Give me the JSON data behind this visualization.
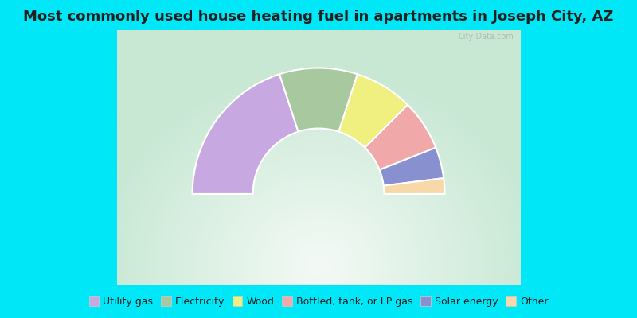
{
  "title": "Most commonly used house heating fuel in apartments in Joseph City, AZ",
  "segments": [
    {
      "label": "Utility gas",
      "value": 40,
      "color": "#c8a8e0"
    },
    {
      "label": "Electricity",
      "value": 20,
      "color": "#a8c8a0"
    },
    {
      "label": "Wood",
      "value": 15,
      "color": "#f0f080"
    },
    {
      "label": "Bottled, tank, or LP gas",
      "value": 13,
      "color": "#f0a8a8"
    },
    {
      "label": "Solar energy",
      "value": 8,
      "color": "#8890d0"
    },
    {
      "label": "Other",
      "value": 4,
      "color": "#f8d8a8"
    }
  ],
  "title_color": "#202020",
  "title_fontsize": 13,
  "legend_fontsize": 9,
  "cyan_bg": "#00e8f8",
  "chart_bg_outer": "#c8e8d4",
  "chart_bg_inner": "#f4faf6",
  "watermark": "City-Data.com",
  "title_bar_height": 0.095,
  "legend_bar_height": 0.105,
  "outer_r": 1.0,
  "inner_r": 0.52
}
